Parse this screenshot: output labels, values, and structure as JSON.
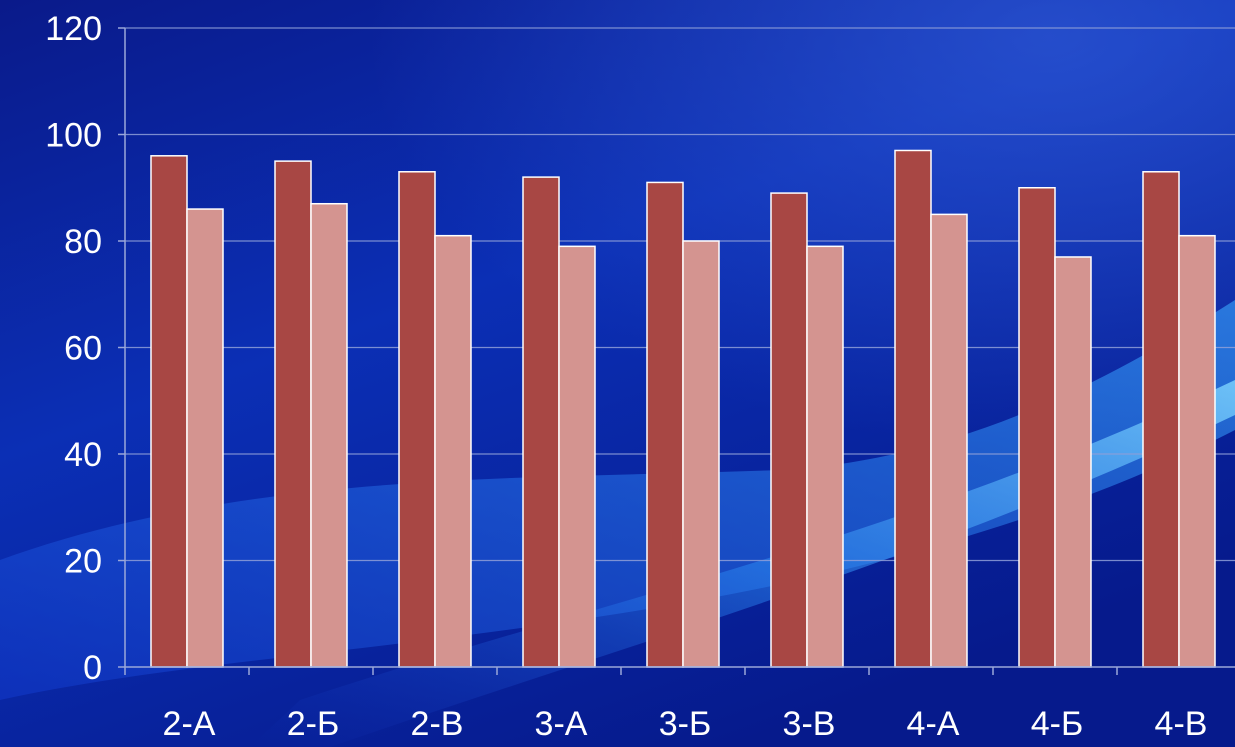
{
  "chart_data": {
    "type": "bar",
    "title": "",
    "xlabel": "",
    "ylabel": "",
    "categories": [
      "2-А",
      "2-Б",
      "2-В",
      "3-А",
      "3-Б",
      "3-В",
      "4-А",
      "4-Б",
      "4-В"
    ],
    "series": [
      {
        "values": [
          96,
          95,
          93,
          92,
          91,
          89,
          97,
          90,
          93
        ],
        "color": "#a84744"
      },
      {
        "values": [
          86,
          87,
          81,
          79,
          80,
          79,
          85,
          77,
          81
        ],
        "color": "#d49490"
      }
    ],
    "ylim": [
      0,
      120
    ],
    "yticks": [
      0,
      20,
      40,
      60,
      80,
      100,
      120
    ],
    "grid": true,
    "legend": "none",
    "background": "blue gradient with light swoosh"
  }
}
